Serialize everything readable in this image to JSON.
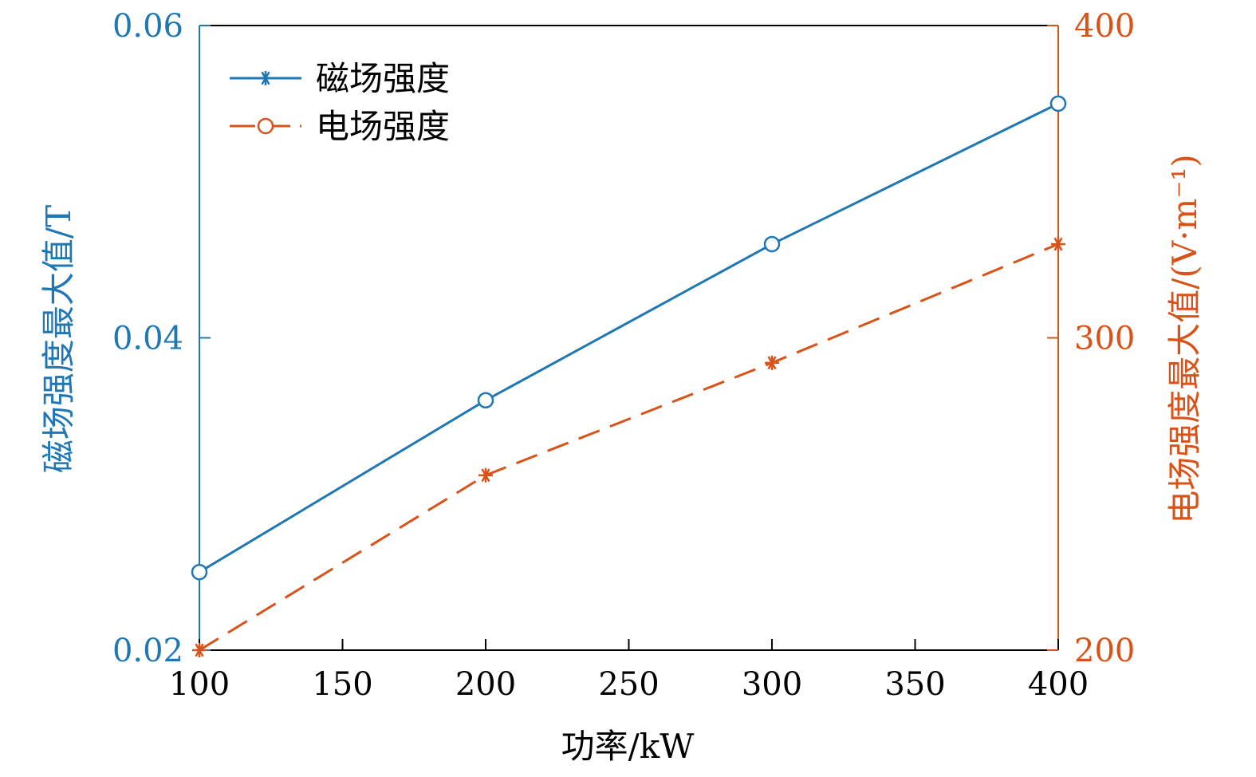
{
  "chart_data": {
    "type": "line",
    "xlabel": "功率/kW",
    "x": [
      100,
      200,
      300,
      400
    ],
    "xlim": [
      100,
      400
    ],
    "xticks": [
      100,
      150,
      200,
      250,
      300,
      350,
      400
    ],
    "xtick_labels": [
      "100",
      "150",
      "200",
      "250",
      "300",
      "350",
      "400"
    ],
    "left_axis": {
      "label": "磁场强度最大值/T",
      "lim": [
        0.02,
        0.06
      ],
      "ticks": [
        0.02,
        0.04,
        0.06
      ],
      "tick_labels": [
        "0.02",
        "0.04",
        "0.06"
      ],
      "color": "#1f77b4"
    },
    "right_axis": {
      "label": "电场强度最大值/(V·m⁻¹)",
      "lim": [
        200,
        400
      ],
      "ticks": [
        200,
        300,
        400
      ],
      "tick_labels": [
        "200",
        "300",
        "400"
      ],
      "color": "#d95319"
    },
    "series": [
      {
        "name": "磁场强度",
        "axis": "left",
        "values": [
          0.025,
          0.036,
          0.046,
          0.055
        ],
        "color": "#1f77b4",
        "line_style": "solid",
        "marker": "circle",
        "legend_marker": "asterisk"
      },
      {
        "name": "电场强度",
        "axis": "right",
        "values": [
          200,
          256,
          292,
          330
        ],
        "color": "#d95319",
        "line_style": "dashed",
        "marker": "asterisk",
        "legend_marker": "circle"
      }
    ],
    "legend_position": "top-left",
    "grid": false
  }
}
